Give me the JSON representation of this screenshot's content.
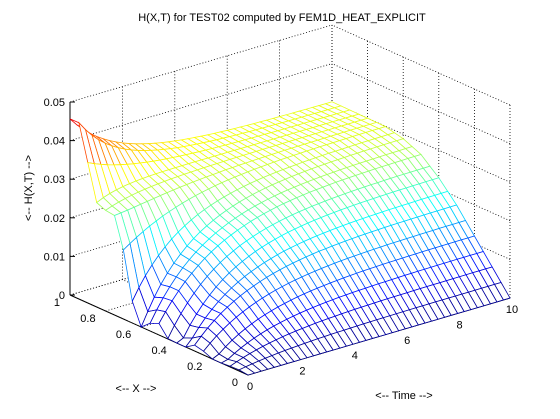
{
  "chart_data": {
    "type": "surface",
    "title": "H(X,T) for TEST02 computed by FEM1D_HEAT_EXPLICIT",
    "xlabel": "<-- X -->",
    "ylabel": "<-- Time -->",
    "zlabel": "<--  H(X,T) -->",
    "x_range": [
      0,
      1
    ],
    "time_range": [
      0,
      10
    ],
    "z_range": [
      0,
      0.05
    ],
    "x_ticks": [
      "0",
      "0.2",
      "0.4",
      "0.6",
      "0.8",
      "1"
    ],
    "time_ticks": [
      "0",
      "2",
      "4",
      "6",
      "8",
      "10"
    ],
    "z_ticks": [
      "0",
      "0.01",
      "0.02",
      "0.03",
      "0.04",
      "0.05"
    ],
    "grid": true,
    "colormap": "jet",
    "initial_profile_h": {
      "x": [
        0,
        0.05,
        0.1,
        0.15,
        0.2,
        0.25,
        0.3,
        0.35,
        0.4,
        0.45,
        0.5,
        0.55,
        0.6,
        0.65,
        0.7,
        0.75,
        0.8,
        0.85,
        0.9,
        0.95,
        1.0
      ],
      "h": [
        0.0,
        0.0,
        0.0,
        0.0,
        0.0,
        0.0,
        0.0,
        0.0,
        0.0,
        0.0,
        0.0,
        0.001,
        0.003,
        0.008,
        0.015,
        0.022,
        0.028,
        0.032,
        0.036,
        0.04,
        0.044
      ]
    },
    "final_profile_h": {
      "time": 10,
      "x": [
        0,
        0.1,
        0.2,
        0.3,
        0.4,
        0.5,
        0.6,
        0.7,
        0.8,
        0.9,
        1.0
      ],
      "h": [
        0.0,
        0.006,
        0.012,
        0.018,
        0.023,
        0.027,
        0.029,
        0.03,
        0.03,
        0.03,
        0.03
      ]
    }
  }
}
